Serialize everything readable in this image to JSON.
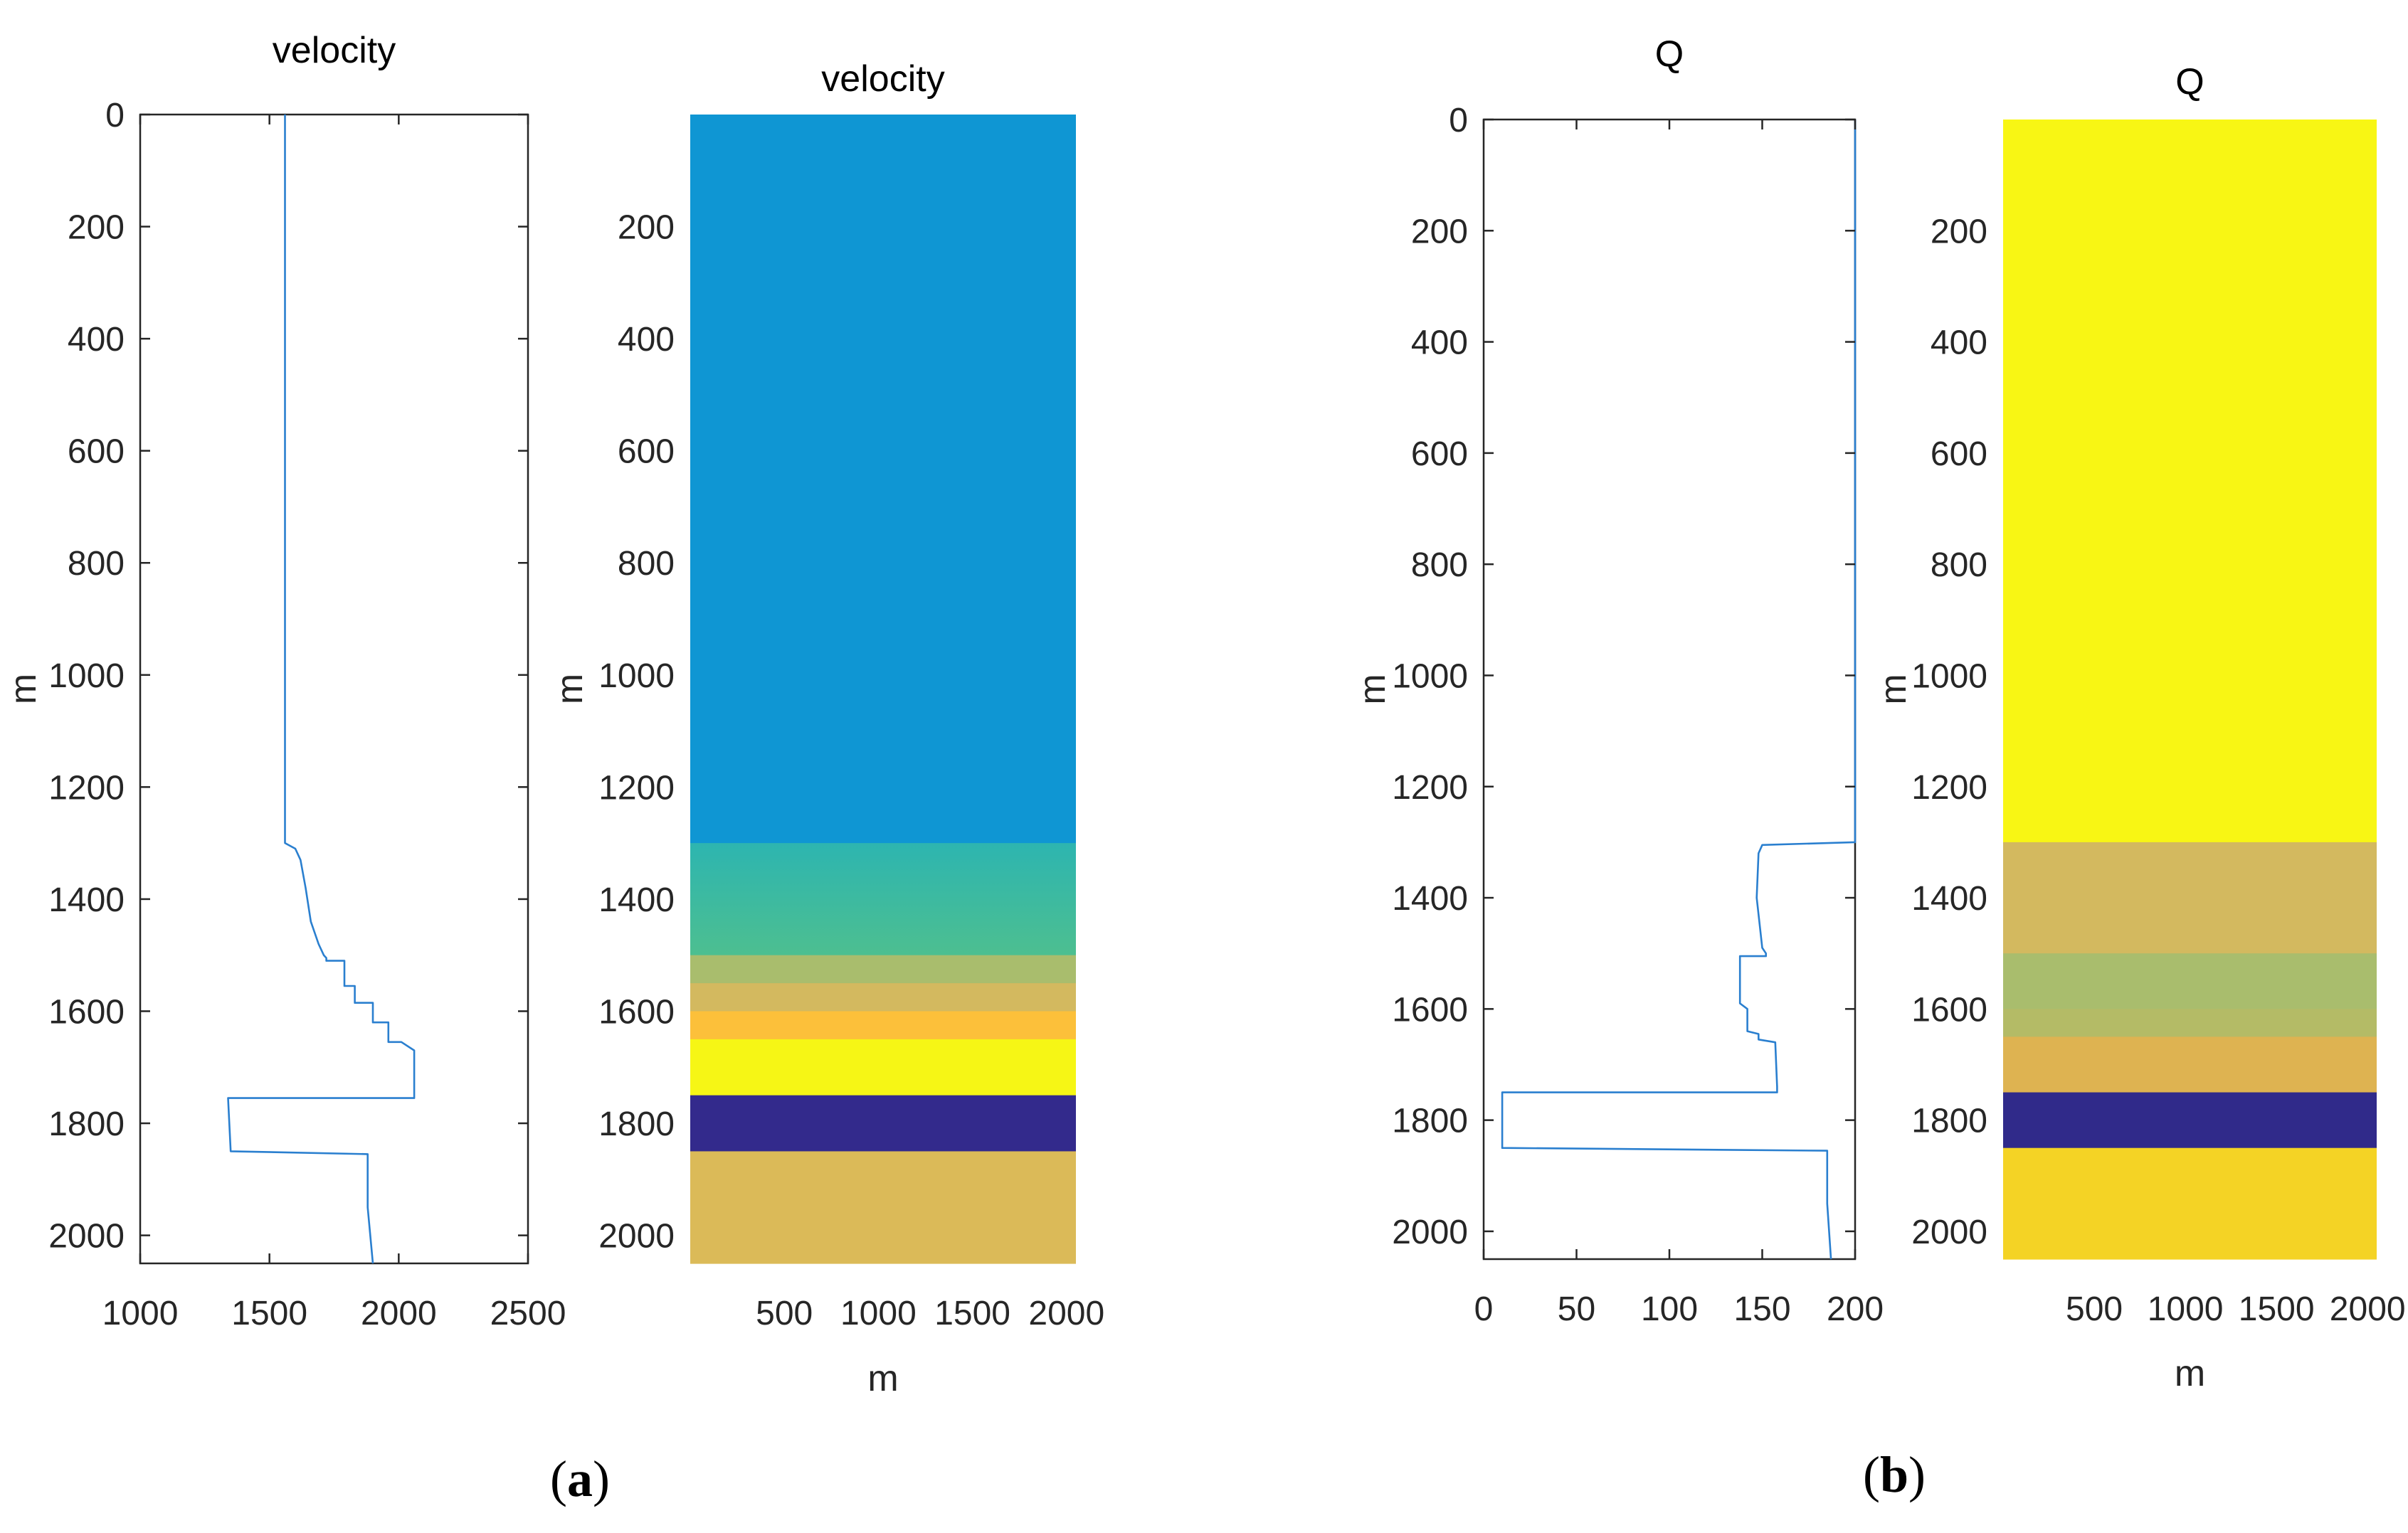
{
  "chart_data": [
    {
      "panel": "a",
      "type": "line",
      "title": "velocity",
      "xlabel": "",
      "ylabel": "m",
      "xlim": [
        1000,
        2500
      ],
      "ylim": [
        0,
        2050
      ],
      "y_reversed": true,
      "xticks": [
        1000,
        1500,
        2000,
        2500
      ],
      "yticks": [
        0,
        200,
        400,
        600,
        800,
        1000,
        1200,
        1400,
        1600,
        1800,
        2000
      ],
      "series": [
        {
          "name": "velocity",
          "color": "#2a7fcf",
          "points": [
            [
              1560,
              0
            ],
            [
              1560,
              1300
            ],
            [
              1600,
              1310
            ],
            [
              1620,
              1330
            ],
            [
              1640,
              1380
            ],
            [
              1660,
              1440
            ],
            [
              1690,
              1480
            ],
            [
              1710,
              1500
            ],
            [
              1720,
              1505
            ],
            [
              1720,
              1510
            ],
            [
              1790,
              1510
            ],
            [
              1790,
              1555
            ],
            [
              1830,
              1555
            ],
            [
              1830,
              1585
            ],
            [
              1900,
              1585
            ],
            [
              1900,
              1620
            ],
            [
              1960,
              1620
            ],
            [
              1960,
              1655
            ],
            [
              2010,
              1655
            ],
            [
              2060,
              1670
            ],
            [
              2060,
              1755
            ],
            [
              1340,
              1755
            ],
            [
              1350,
              1850
            ],
            [
              1880,
              1855
            ],
            [
              1880,
              1950
            ],
            [
              1900,
              2050
            ]
          ]
        }
      ]
    },
    {
      "panel": "a",
      "type": "heatmap",
      "title": "velocity",
      "xlabel": "m",
      "ylabel": "m",
      "xlim": [
        0,
        2050
      ],
      "ylim": [
        0,
        2050
      ],
      "y_reversed": true,
      "xticks": [
        500,
        1000,
        1500,
        2000
      ],
      "yticks": [
        200,
        400,
        600,
        800,
        1000,
        1200,
        1400,
        1600,
        1800,
        2000
      ],
      "layers": [
        {
          "top": 0,
          "bottom": 1300,
          "color": "#0f96d3"
        },
        {
          "top": 1300,
          "bottom": 1500,
          "color": "#2db5b0",
          "color_bottom": "#4dbf90"
        },
        {
          "top": 1500,
          "bottom": 1550,
          "color": "#a9bd6d"
        },
        {
          "top": 1550,
          "bottom": 1600,
          "color": "#d3b95f"
        },
        {
          "top": 1600,
          "bottom": 1650,
          "color": "#fcc03a"
        },
        {
          "top": 1650,
          "bottom": 1750,
          "color": "#f6f615"
        },
        {
          "top": 1750,
          "bottom": 1850,
          "color": "#332a8c"
        },
        {
          "top": 1850,
          "bottom": 2050,
          "color": "#dbba58"
        }
      ]
    },
    {
      "panel": "b",
      "type": "line",
      "title": "Q",
      "xlabel": "",
      "ylabel": "m",
      "xlim": [
        0,
        200
      ],
      "ylim": [
        0,
        2050
      ],
      "y_reversed": true,
      "xticks": [
        0,
        50,
        100,
        150,
        200
      ],
      "yticks": [
        0,
        200,
        400,
        600,
        800,
        1000,
        1200,
        1400,
        1600,
        1800,
        2000
      ],
      "series": [
        {
          "name": "Q",
          "color": "#2a7fcf",
          "points": [
            [
              200,
              0
            ],
            [
              200,
              1300
            ],
            [
              150,
              1305
            ],
            [
              148,
              1320
            ],
            [
              147,
              1400
            ],
            [
              150,
              1490
            ],
            [
              152,
              1500
            ],
            [
              152,
              1505
            ],
            [
              138,
              1505
            ],
            [
              138,
              1590
            ],
            [
              142,
              1600
            ],
            [
              142,
              1640
            ],
            [
              148,
              1645
            ],
            [
              148,
              1655
            ],
            [
              157,
              1660
            ],
            [
              158,
              1740
            ],
            [
              158,
              1750
            ],
            [
              10,
              1750
            ],
            [
              10,
              1850
            ],
            [
              185,
              1855
            ],
            [
              185,
              1950
            ],
            [
              187,
              2050
            ]
          ]
        }
      ]
    },
    {
      "panel": "b",
      "type": "heatmap",
      "title": "Q",
      "xlabel": "m",
      "ylabel": "m",
      "xlim": [
        0,
        2050
      ],
      "ylim": [
        0,
        2050
      ],
      "y_reversed": true,
      "xticks": [
        500,
        1000,
        1500,
        2000
      ],
      "yticks": [
        200,
        400,
        600,
        800,
        1000,
        1200,
        1400,
        1600,
        1800,
        2000
      ],
      "layers": [
        {
          "top": 0,
          "bottom": 1300,
          "color": "#f8f614"
        },
        {
          "top": 1300,
          "bottom": 1500,
          "color": "#d3b95f"
        },
        {
          "top": 1500,
          "bottom": 1600,
          "color": "#a9bd6d"
        },
        {
          "top": 1600,
          "bottom": 1650,
          "color": "#b4bb66"
        },
        {
          "top": 1650,
          "bottom": 1750,
          "color": "#deb351"
        },
        {
          "top": 1750,
          "bottom": 1850,
          "color": "#302a8a"
        },
        {
          "top": 1850,
          "bottom": 2050,
          "color": "#f4d325"
        }
      ]
    }
  ],
  "captions": {
    "a": {
      "open": "(",
      "letter": "a",
      "close": ")"
    },
    "b": {
      "open": "(",
      "letter": "b",
      "close": ")"
    }
  }
}
